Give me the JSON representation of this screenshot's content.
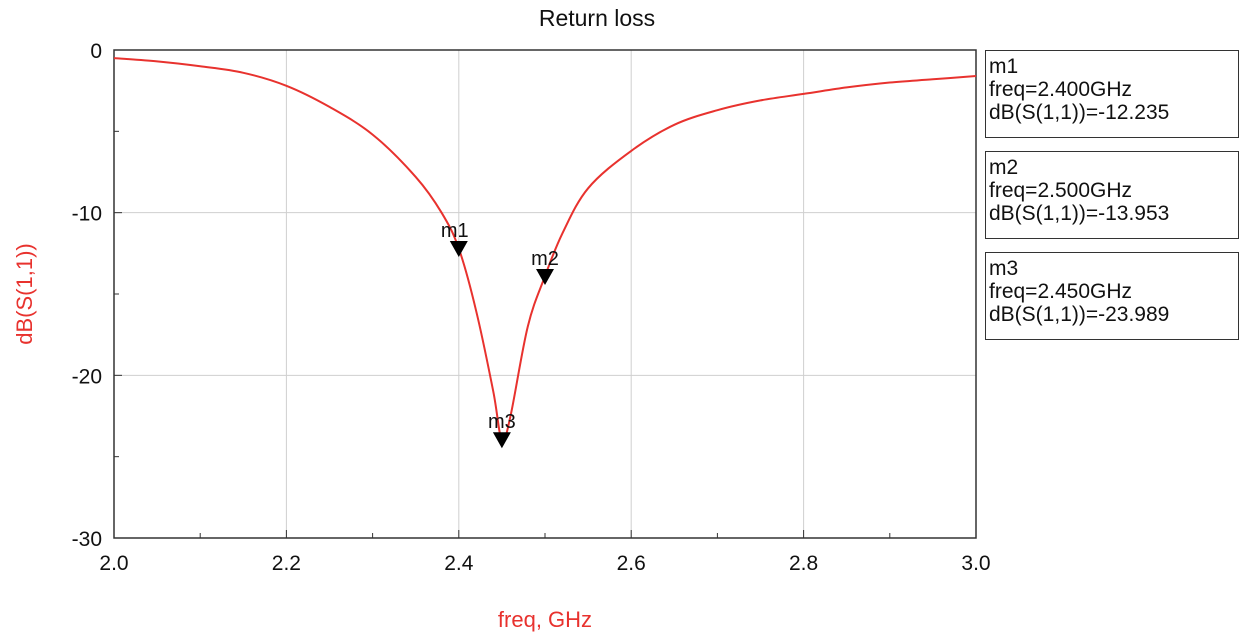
{
  "chart_data": {
    "type": "line",
    "title": "Return loss",
    "xlabel": "freq, GHz",
    "ylabel": "dB(S(1,1))",
    "xlim": [
      2.0,
      3.0
    ],
    "ylim": [
      -30,
      0
    ],
    "x_ticks": [
      "2.0",
      "2.2",
      "2.4",
      "2.6",
      "2.8",
      "3.0"
    ],
    "y_ticks": [
      "0",
      "-10",
      "-20",
      "-30"
    ],
    "grid": true,
    "series": [
      {
        "color": "#e8322e",
        "points": [
          [
            2.0,
            -0.5
          ],
          [
            2.05,
            -0.7
          ],
          [
            2.1,
            -1.0
          ],
          [
            2.15,
            -1.4
          ],
          [
            2.2,
            -2.2
          ],
          [
            2.25,
            -3.5
          ],
          [
            2.3,
            -5.2
          ],
          [
            2.35,
            -7.8
          ],
          [
            2.38,
            -10.0
          ],
          [
            2.4,
            -12.2
          ],
          [
            2.42,
            -16.0
          ],
          [
            2.44,
            -21.0
          ],
          [
            2.45,
            -24.0
          ],
          [
            2.46,
            -22.5
          ],
          [
            2.48,
            -17.0
          ],
          [
            2.5,
            -13.9
          ],
          [
            2.52,
            -11.3
          ],
          [
            2.55,
            -8.5
          ],
          [
            2.6,
            -6.2
          ],
          [
            2.65,
            -4.6
          ],
          [
            2.7,
            -3.7
          ],
          [
            2.75,
            -3.1
          ],
          [
            2.8,
            -2.7
          ],
          [
            2.85,
            -2.3
          ],
          [
            2.9,
            -2.0
          ],
          [
            2.95,
            -1.8
          ],
          [
            3.0,
            -1.6
          ]
        ]
      }
    ],
    "markers": [
      {
        "name": "m1",
        "x": 2.4,
        "y": -12.235,
        "label_pos": "left"
      },
      {
        "name": "m2",
        "x": 2.5,
        "y": -13.953,
        "label_pos": "center"
      },
      {
        "name": "m3",
        "x": 2.45,
        "y": -23.989,
        "label_pos": "center"
      }
    ]
  },
  "legend": [
    {
      "name": "m1",
      "freq": "freq=2.400GHz",
      "value": "dB(S(1,1))=-12.235"
    },
    {
      "name": "m2",
      "freq": "freq=2.500GHz",
      "value": "dB(S(1,1))=-13.953"
    },
    {
      "name": "m3",
      "freq": "freq=2.450GHz",
      "value": "dB(S(1,1))=-23.989"
    }
  ],
  "colors": {
    "curve": "#e8322e",
    "axis_label": "#e8322e",
    "grid": "#cfcfcf",
    "frame": "#333333"
  }
}
